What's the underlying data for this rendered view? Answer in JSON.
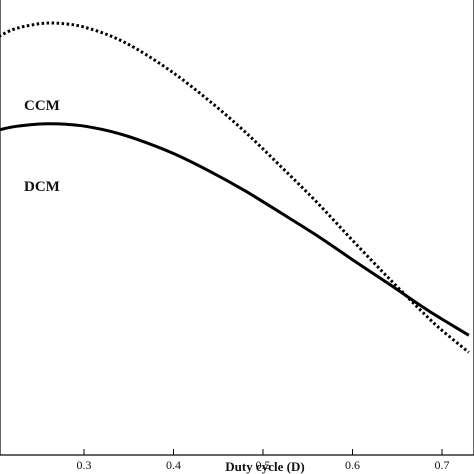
{
  "chart_data": {
    "type": "line",
    "xlabel": "Duty cycle (D)",
    "ylabel": "",
    "xlim": [
      0.2,
      0.73
    ],
    "ylim": [
      0,
      1
    ],
    "x_ticks": [
      0.3,
      0.4,
      0.5,
      0.6,
      0.7
    ],
    "x_tick_labels": [
      "0.3",
      "0.4",
      "0.5",
      "0.6",
      "0.7"
    ],
    "grid": false,
    "annotations": [
      "CCM",
      "DCM"
    ],
    "series": [
      {
        "name": "CCM",
        "style": "dotted",
        "color": "#000000",
        "x": [
          0.2,
          0.22,
          0.24,
          0.26,
          0.28,
          0.3,
          0.33,
          0.36,
          0.4,
          0.44,
          0.48,
          0.52,
          0.56,
          0.6,
          0.64,
          0.68,
          0.7,
          0.73
        ],
        "y": [
          0.925,
          0.945,
          0.955,
          0.96,
          0.958,
          0.951,
          0.931,
          0.901,
          0.849,
          0.787,
          0.718,
          0.641,
          0.562,
          0.477,
          0.394,
          0.314,
          0.277,
          0.228
        ]
      },
      {
        "name": "DCM",
        "style": "solid",
        "color": "#000000",
        "x": [
          0.2,
          0.22,
          0.24,
          0.26,
          0.28,
          0.3,
          0.33,
          0.36,
          0.4,
          0.44,
          0.48,
          0.52,
          0.56,
          0.6,
          0.64,
          0.68,
          0.7,
          0.73
        ],
        "y": [
          0.72,
          0.729,
          0.734,
          0.736,
          0.735,
          0.731,
          0.719,
          0.701,
          0.67,
          0.631,
          0.587,
          0.538,
          0.488,
          0.434,
          0.381,
          0.327,
          0.302,
          0.266
        ]
      }
    ]
  }
}
